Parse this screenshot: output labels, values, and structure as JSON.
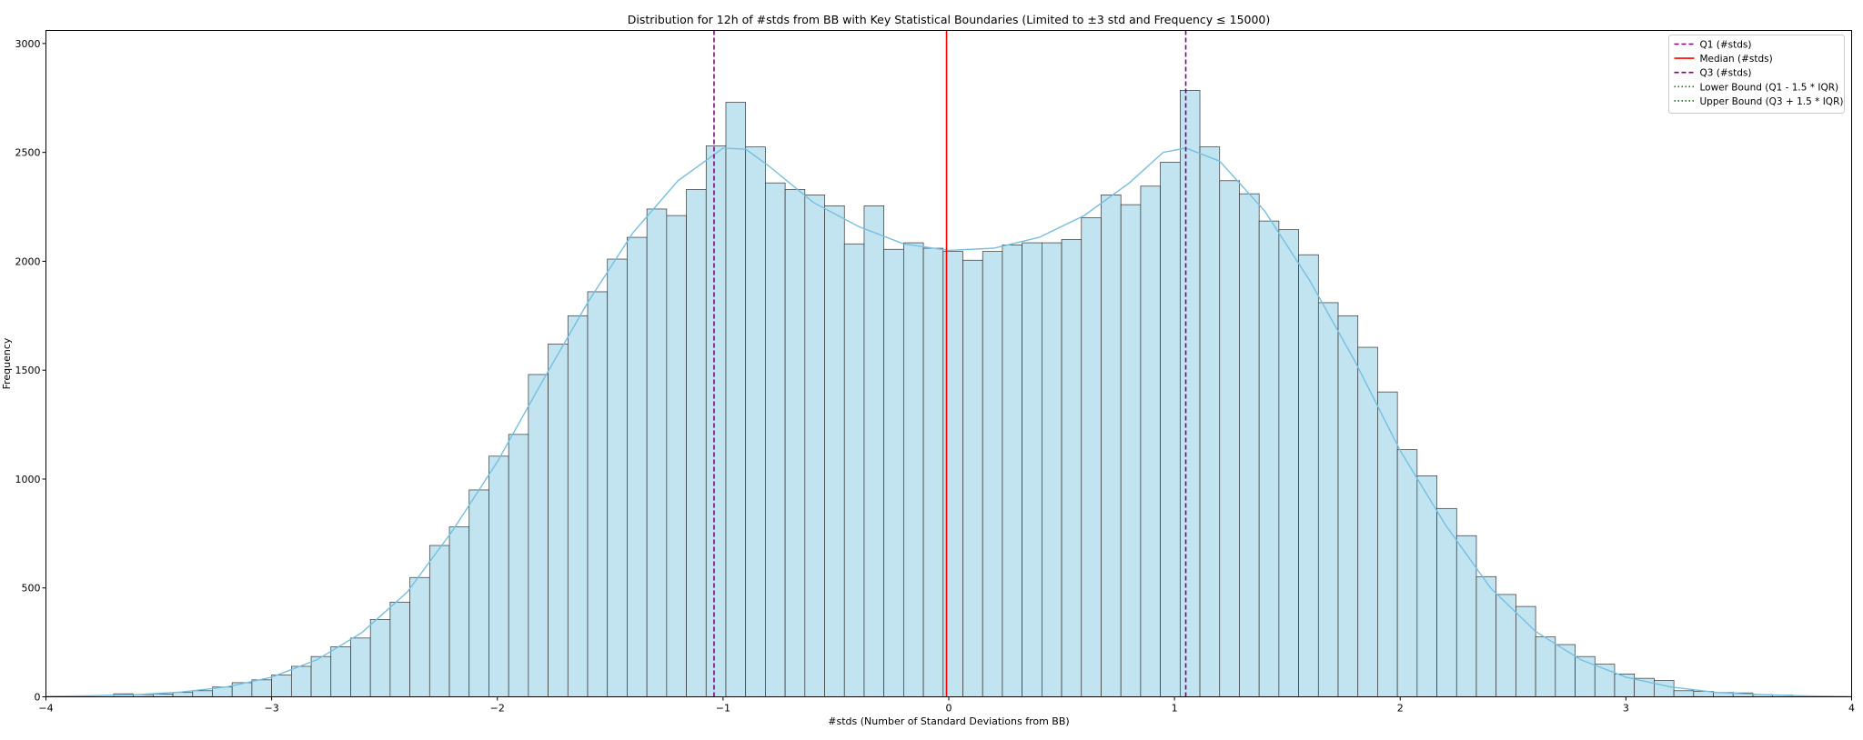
{
  "chart_data": {
    "type": "bar",
    "title": "Distribution for 12h of #stds from BB with Key Statistical Boundaries (Limited to ±3 std and Frequency ≤ 15000)",
    "xlabel": "#stds (Number of Standard Deviations from BB)",
    "ylabel": "Frequency",
    "xlim": [
      -4,
      4
    ],
    "ylim": [
      0,
      3060
    ],
    "xticks": [
      {
        "value": -4,
        "label": "−4"
      },
      {
        "value": -3,
        "label": "−3"
      },
      {
        "value": -2,
        "label": "−2"
      },
      {
        "value": -1,
        "label": "−1"
      },
      {
        "value": 0,
        "label": "0"
      },
      {
        "value": 1,
        "label": "1"
      },
      {
        "value": 2,
        "label": "2"
      },
      {
        "value": 3,
        "label": "3"
      },
      {
        "value": 4,
        "label": "4"
      }
    ],
    "yticks": [
      {
        "value": 0,
        "label": "0"
      },
      {
        "value": 500,
        "label": "500"
      },
      {
        "value": 1000,
        "label": "1000"
      },
      {
        "value": 1500,
        "label": "1500"
      },
      {
        "value": 2000,
        "label": "2000"
      },
      {
        "value": 2500,
        "label": "2500"
      },
      {
        "value": 3000,
        "label": "3000"
      }
    ],
    "bin_width": 0.0875,
    "histogram": [
      {
        "x0": -3.7,
        "count": 14
      },
      {
        "x0": -3.6125,
        "count": 10
      },
      {
        "x0": -3.525,
        "count": 13
      },
      {
        "x0": -3.4375,
        "count": 20
      },
      {
        "x0": -3.35,
        "count": 28
      },
      {
        "x0": -3.2625,
        "count": 45
      },
      {
        "x0": -3.175,
        "count": 65
      },
      {
        "x0": -3.0875,
        "count": 78
      },
      {
        "x0": -3.0,
        "count": 100
      },
      {
        "x0": -2.9125,
        "count": 140
      },
      {
        "x0": -2.825,
        "count": 185
      },
      {
        "x0": -2.7375,
        "count": 230
      },
      {
        "x0": -2.65,
        "count": 270
      },
      {
        "x0": -2.5625,
        "count": 355
      },
      {
        "x0": -2.475,
        "count": 435
      },
      {
        "x0": -2.3875,
        "count": 548
      },
      {
        "x0": -2.3,
        "count": 695
      },
      {
        "x0": -2.2125,
        "count": 780
      },
      {
        "x0": -2.125,
        "count": 950
      },
      {
        "x0": -2.0375,
        "count": 1105
      },
      {
        "x0": -1.95,
        "count": 1205
      },
      {
        "x0": -1.8625,
        "count": 1480
      },
      {
        "x0": -1.775,
        "count": 1620
      },
      {
        "x0": -1.6875,
        "count": 1750
      },
      {
        "x0": -1.6,
        "count": 1860
      },
      {
        "x0": -1.5125,
        "count": 2010
      },
      {
        "x0": -1.425,
        "count": 2110
      },
      {
        "x0": -1.3375,
        "count": 2240
      },
      {
        "x0": -1.25,
        "count": 2210
      },
      {
        "x0": -1.1625,
        "count": 2330
      },
      {
        "x0": -1.075,
        "count": 2530
      },
      {
        "x0": -0.9875,
        "count": 2730
      },
      {
        "x0": -0.9,
        "count": 2525
      },
      {
        "x0": -0.8125,
        "count": 2360
      },
      {
        "x0": -0.725,
        "count": 2330
      },
      {
        "x0": -0.6375,
        "count": 2305
      },
      {
        "x0": -0.55,
        "count": 2255
      },
      {
        "x0": -0.4625,
        "count": 2080
      },
      {
        "x0": -0.375,
        "count": 2255
      },
      {
        "x0": -0.2875,
        "count": 2055
      },
      {
        "x0": -0.2,
        "count": 2085
      },
      {
        "x0": -0.1125,
        "count": 2060
      },
      {
        "x0": -0.025,
        "count": 2045
      },
      {
        "x0": 0.0625,
        "count": 2005
      },
      {
        "x0": 0.15,
        "count": 2045
      },
      {
        "x0": 0.2375,
        "count": 2075
      },
      {
        "x0": 0.325,
        "count": 2085
      },
      {
        "x0": 0.4125,
        "count": 2085
      },
      {
        "x0": 0.5,
        "count": 2100
      },
      {
        "x0": 0.5875,
        "count": 2200
      },
      {
        "x0": 0.675,
        "count": 2305
      },
      {
        "x0": 0.7625,
        "count": 2260
      },
      {
        "x0": 0.85,
        "count": 2345
      },
      {
        "x0": 0.9375,
        "count": 2455
      },
      {
        "x0": 1.025,
        "count": 2785
      },
      {
        "x0": 1.1125,
        "count": 2525
      },
      {
        "x0": 1.2,
        "count": 2370
      },
      {
        "x0": 1.2875,
        "count": 2310
      },
      {
        "x0": 1.375,
        "count": 2185
      },
      {
        "x0": 1.4625,
        "count": 2145
      },
      {
        "x0": 1.55,
        "count": 2030
      },
      {
        "x0": 1.6375,
        "count": 1810
      },
      {
        "x0": 1.725,
        "count": 1750
      },
      {
        "x0": 1.8125,
        "count": 1605
      },
      {
        "x0": 1.9,
        "count": 1400
      },
      {
        "x0": 1.9875,
        "count": 1135
      },
      {
        "x0": 2.075,
        "count": 1015
      },
      {
        "x0": 2.1625,
        "count": 865
      },
      {
        "x0": 2.25,
        "count": 740
      },
      {
        "x0": 2.3375,
        "count": 552
      },
      {
        "x0": 2.425,
        "count": 470
      },
      {
        "x0": 2.5125,
        "count": 415
      },
      {
        "x0": 2.6,
        "count": 275
      },
      {
        "x0": 2.6875,
        "count": 240
      },
      {
        "x0": 2.775,
        "count": 185
      },
      {
        "x0": 2.8625,
        "count": 150
      },
      {
        "x0": 2.95,
        "count": 105
      },
      {
        "x0": 3.0375,
        "count": 85
      },
      {
        "x0": 3.125,
        "count": 75
      },
      {
        "x0": 3.2125,
        "count": 28
      },
      {
        "x0": 3.3,
        "count": 25
      },
      {
        "x0": 3.3875,
        "count": 20
      },
      {
        "x0": 3.475,
        "count": 18
      },
      {
        "x0": 3.5625,
        "count": 10
      },
      {
        "x0": 3.65,
        "count": 8
      }
    ],
    "kde": [
      {
        "x": -4.0,
        "y": 2
      },
      {
        "x": -3.8,
        "y": 5
      },
      {
        "x": -3.6,
        "y": 10
      },
      {
        "x": -3.4,
        "y": 22
      },
      {
        "x": -3.2,
        "y": 45
      },
      {
        "x": -3.0,
        "y": 90
      },
      {
        "x": -2.8,
        "y": 170
      },
      {
        "x": -2.6,
        "y": 295
      },
      {
        "x": -2.4,
        "y": 480
      },
      {
        "x": -2.2,
        "y": 760
      },
      {
        "x": -2.0,
        "y": 1080
      },
      {
        "x": -1.8,
        "y": 1450
      },
      {
        "x": -1.6,
        "y": 1810
      },
      {
        "x": -1.4,
        "y": 2130
      },
      {
        "x": -1.2,
        "y": 2370
      },
      {
        "x": -1.0,
        "y": 2520
      },
      {
        "x": -0.9,
        "y": 2515
      },
      {
        "x": -0.8,
        "y": 2440
      },
      {
        "x": -0.6,
        "y": 2270
      },
      {
        "x": -0.4,
        "y": 2160
      },
      {
        "x": -0.2,
        "y": 2080
      },
      {
        "x": 0.0,
        "y": 2050
      },
      {
        "x": 0.2,
        "y": 2060
      },
      {
        "x": 0.4,
        "y": 2110
      },
      {
        "x": 0.6,
        "y": 2210
      },
      {
        "x": 0.8,
        "y": 2360
      },
      {
        "x": 0.95,
        "y": 2500
      },
      {
        "x": 1.05,
        "y": 2520
      },
      {
        "x": 1.2,
        "y": 2460
      },
      {
        "x": 1.4,
        "y": 2230
      },
      {
        "x": 1.6,
        "y": 1910
      },
      {
        "x": 1.8,
        "y": 1540
      },
      {
        "x": 2.0,
        "y": 1130
      },
      {
        "x": 2.2,
        "y": 790
      },
      {
        "x": 2.4,
        "y": 500
      },
      {
        "x": 2.6,
        "y": 300
      },
      {
        "x": 2.8,
        "y": 170
      },
      {
        "x": 3.0,
        "y": 90
      },
      {
        "x": 3.2,
        "y": 45
      },
      {
        "x": 3.4,
        "y": 20
      },
      {
        "x": 3.6,
        "y": 10
      },
      {
        "x": 3.8,
        "y": 4
      },
      {
        "x": 4.0,
        "y": 1
      }
    ],
    "reference_lines": [
      {
        "name": "q1",
        "label": "Q1 (#stds)",
        "value": -1.04,
        "color": "#800080",
        "style": "dashed"
      },
      {
        "name": "median",
        "label": "Median (#stds)",
        "value": -0.01,
        "color": "#ff0000",
        "style": "solid"
      },
      {
        "name": "q3",
        "label": "Q3 (#stds)",
        "value": 1.05,
        "color": "#800080",
        "style": "dashed"
      }
    ],
    "legend": {
      "placement": "top-right",
      "entries": [
        {
          "name": "q1",
          "label": "Q1 (#stds)",
          "color": "#800080",
          "style": "dashed"
        },
        {
          "name": "median",
          "label": "Median (#stds)",
          "color": "#ff0000",
          "style": "solid"
        },
        {
          "name": "q3",
          "label": "Q3 (#stds)",
          "color": "#800080",
          "style": "dashed"
        },
        {
          "name": "lower-bound",
          "label": "Lower Bound (Q1 - 1.5 * IQR)",
          "color": "#008000",
          "style": "dotted"
        },
        {
          "name": "upper-bound",
          "label": "Upper Bound (Q3 + 1.5 * IQR)",
          "color": "#008000",
          "style": "dotted"
        }
      ]
    },
    "colors": {
      "bar_fill": "#c2e4f0",
      "bar_edge": "#333333",
      "kde_line": "#75bfe2"
    },
    "grid": false
  }
}
